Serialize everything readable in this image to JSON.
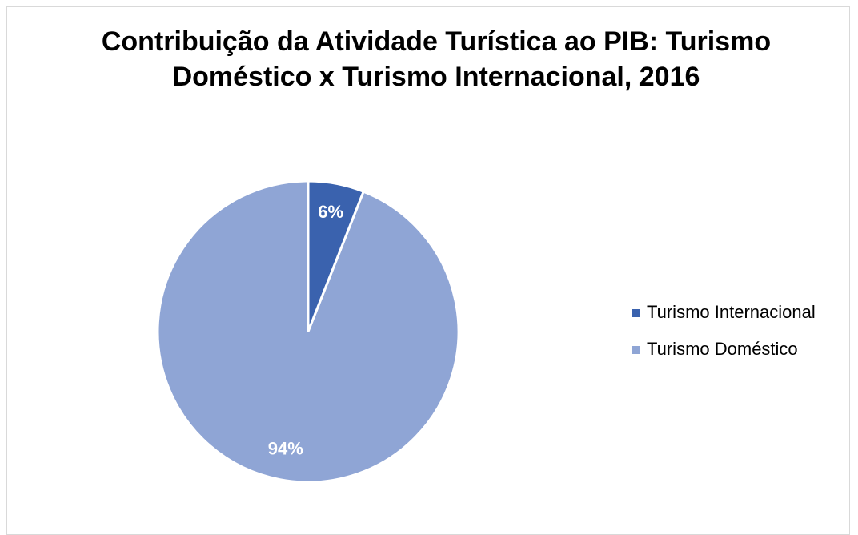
{
  "chart_data": {
    "type": "pie",
    "title": "Contribuição da Atividade Turística ao PIB: Turismo Doméstico x Turismo Internacional, 2016",
    "categories": [
      "Turismo Internacional",
      "Turismo Doméstico"
    ],
    "values": [
      6,
      94
    ],
    "value_labels": [
      "6%",
      "94%"
    ],
    "colors": [
      "#3a62ae",
      "#8fa5d5"
    ],
    "legend": "right"
  }
}
